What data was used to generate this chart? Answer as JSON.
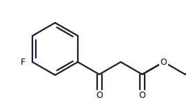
{
  "background_color": "#ffffff",
  "line_color": "#1a1a2e",
  "text_color": "#000000",
  "line_width": 1.6,
  "figsize": [
    2.7,
    1.51
  ],
  "dpi": 100,
  "F_label": "F",
  "O_label": "O"
}
